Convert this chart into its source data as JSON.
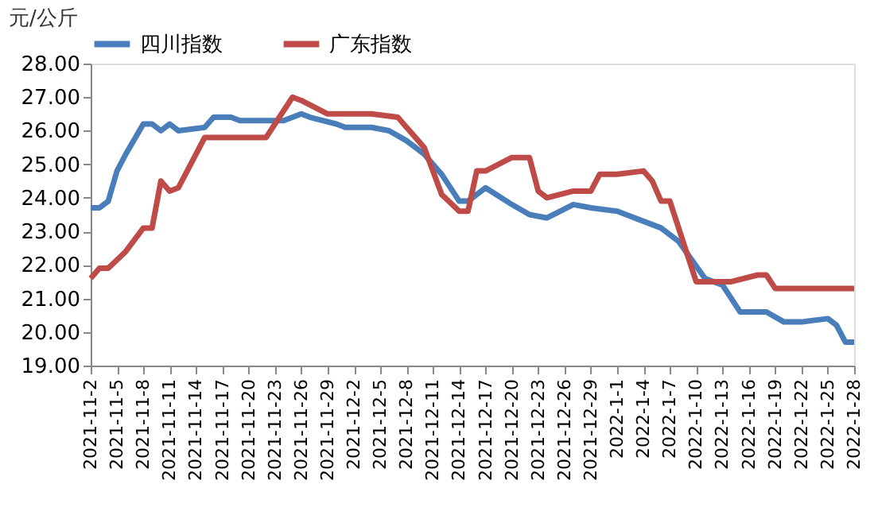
{
  "chart_data": {
    "type": "line",
    "ylabel": "元/公斤",
    "legend": "top",
    "grid": false,
    "marker": "none",
    "line_style": "solid",
    "xlim": [
      "2021-11-02",
      "2022-01-28"
    ],
    "xticks": [
      {
        "value": "2021-11-02",
        "label": "2021-11-2"
      },
      {
        "value": "2021-11-05",
        "label": "2021-11-5"
      },
      {
        "value": "2021-11-08",
        "label": "2021-11-8"
      },
      {
        "value": "2021-11-11",
        "label": "2021-11-11"
      },
      {
        "value": "2021-11-14",
        "label": "2021-11-14"
      },
      {
        "value": "2021-11-17",
        "label": "2021-11-17"
      },
      {
        "value": "2021-11-20",
        "label": "2021-11-20"
      },
      {
        "value": "2021-11-23",
        "label": "2021-11-23"
      },
      {
        "value": "2021-11-26",
        "label": "2021-11-26"
      },
      {
        "value": "2021-11-29",
        "label": "2021-11-29"
      },
      {
        "value": "2021-12-02",
        "label": "2021-12-2"
      },
      {
        "value": "2021-12-05",
        "label": "2021-12-5"
      },
      {
        "value": "2021-12-08",
        "label": "2021-12-8"
      },
      {
        "value": "2021-12-11",
        "label": "2021-12-11"
      },
      {
        "value": "2021-12-14",
        "label": "2021-12-14"
      },
      {
        "value": "2021-12-17",
        "label": "2021-12-17"
      },
      {
        "value": "2021-12-20",
        "label": "2021-12-20"
      },
      {
        "value": "2021-12-23",
        "label": "2021-12-23"
      },
      {
        "value": "2021-12-26",
        "label": "2021-12-26"
      },
      {
        "value": "2021-12-29",
        "label": "2021-12-29"
      },
      {
        "value": "2022-01-01",
        "label": "2022-1-1"
      },
      {
        "value": "2022-01-04",
        "label": "2022-1-4"
      },
      {
        "value": "2022-01-07",
        "label": "2022-1-7"
      },
      {
        "value": "2022-01-10",
        "label": "2022-1-10"
      },
      {
        "value": "2022-01-13",
        "label": "2022-1-13"
      },
      {
        "value": "2022-01-16",
        "label": "2022-1-16"
      },
      {
        "value": "2022-01-19",
        "label": "2022-1-19"
      },
      {
        "value": "2022-01-22",
        "label": "2022-1-22"
      },
      {
        "value": "2022-01-25",
        "label": "2022-1-25"
      },
      {
        "value": "2022-01-28",
        "label": "2022-1-28"
      }
    ],
    "ylim": [
      19,
      28
    ],
    "yticks": [
      {
        "value": 19,
        "label": "19.00"
      },
      {
        "value": 20,
        "label": "20.00"
      },
      {
        "value": 21,
        "label": "21.00"
      },
      {
        "value": 22,
        "label": "22.00"
      },
      {
        "value": 23,
        "label": "23.00"
      },
      {
        "value": 24,
        "label": "24.00"
      },
      {
        "value": 25,
        "label": "25.00"
      },
      {
        "value": 26,
        "label": "26.00"
      },
      {
        "value": 27,
        "label": "27.00"
      },
      {
        "value": 28,
        "label": "28.00"
      }
    ],
    "series": [
      {
        "name": "四川指数",
        "color": "#4a7ebb",
        "x": [
          "2021-11-02",
          "2021-11-03",
          "2021-11-04",
          "2021-11-05",
          "2021-11-06",
          "2021-11-08",
          "2021-11-09",
          "2021-11-10",
          "2021-11-11",
          "2021-11-12",
          "2021-11-15",
          "2021-11-16",
          "2021-11-18",
          "2021-11-19",
          "2021-11-22",
          "2021-11-24",
          "2021-11-26",
          "2021-11-27",
          "2021-11-30",
          "2021-12-01",
          "2021-12-04",
          "2021-12-06",
          "2021-12-08",
          "2021-12-09",
          "2021-12-10",
          "2021-12-12",
          "2021-12-14",
          "2021-12-15",
          "2021-12-17",
          "2021-12-20",
          "2021-12-22",
          "2021-12-24",
          "2021-12-27",
          "2021-12-29",
          "2022-01-01",
          "2022-01-06",
          "2022-01-08",
          "2022-01-11",
          "2022-01-13",
          "2022-01-15",
          "2022-01-18",
          "2022-01-20",
          "2022-01-22",
          "2022-01-25",
          "2022-01-26",
          "2022-01-27",
          "2022-01-28"
        ],
        "values": [
          23.7,
          23.7,
          23.9,
          24.8,
          25.3,
          26.2,
          26.2,
          26.0,
          26.2,
          26.0,
          26.1,
          26.4,
          26.4,
          26.3,
          26.3,
          26.3,
          26.5,
          26.4,
          26.2,
          26.1,
          26.1,
          26.0,
          25.7,
          25.5,
          25.3,
          24.7,
          23.9,
          23.9,
          24.3,
          23.8,
          23.5,
          23.4,
          23.8,
          23.7,
          23.6,
          23.1,
          22.7,
          21.6,
          21.4,
          20.6,
          20.6,
          20.3,
          20.3,
          20.4,
          20.2,
          19.7,
          19.7
        ]
      },
      {
        "name": "广东指数",
        "color": "#be4b48",
        "x": [
          "2021-11-02",
          "2021-11-03",
          "2021-11-04",
          "2021-11-06",
          "2021-11-08",
          "2021-11-09",
          "2021-11-10",
          "2021-11-11",
          "2021-11-12",
          "2021-11-15",
          "2021-11-22",
          "2021-11-25",
          "2021-11-26",
          "2021-11-29",
          "2021-12-04",
          "2021-12-07",
          "2021-12-09",
          "2021-12-10",
          "2021-12-12",
          "2021-12-14",
          "2021-12-15",
          "2021-12-16",
          "2021-12-17",
          "2021-12-20",
          "2021-12-22",
          "2021-12-23",
          "2021-12-24",
          "2021-12-27",
          "2021-12-29",
          "2021-12-30",
          "2022-01-01",
          "2022-01-04",
          "2022-01-05",
          "2022-01-06",
          "2022-01-07",
          "2022-01-10",
          "2022-01-14",
          "2022-01-17",
          "2022-01-18",
          "2022-01-19",
          "2022-01-28"
        ],
        "values": [
          21.6,
          21.9,
          21.9,
          22.4,
          23.1,
          23.1,
          24.5,
          24.2,
          24.3,
          25.8,
          25.8,
          27.0,
          26.9,
          26.5,
          26.5,
          26.4,
          25.8,
          25.5,
          24.1,
          23.6,
          23.6,
          24.8,
          24.8,
          25.2,
          25.2,
          24.2,
          24.0,
          24.2,
          24.2,
          24.7,
          24.7,
          24.8,
          24.5,
          23.9,
          23.9,
          21.5,
          21.5,
          21.7,
          21.7,
          21.3,
          21.3
        ]
      }
    ]
  }
}
